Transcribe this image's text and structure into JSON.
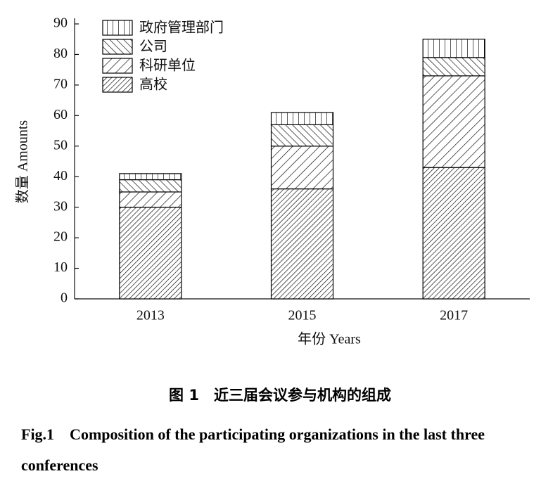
{
  "chart_data": {
    "type": "stacked_bar",
    "xlabel": "年份 Years",
    "ylabel": "数量 Amounts",
    "categories": [
      "2013",
      "2015",
      "2017"
    ],
    "series": [
      {
        "name": "高校",
        "color": "#000000",
        "hatch": "dense-forward",
        "values": [
          30,
          36,
          43
        ]
      },
      {
        "name": "科研单位",
        "color": "#000000",
        "hatch": "forward",
        "values": [
          5,
          14,
          30
        ]
      },
      {
        "name": "公司",
        "color": "#000000",
        "hatch": "backward",
        "values": [
          4,
          7,
          6
        ]
      },
      {
        "name": "政府管理部门",
        "color": "#000000",
        "hatch": "vertical",
        "values": [
          2,
          4,
          6
        ]
      }
    ],
    "ylim": [
      0,
      90
    ],
    "yticks": [
      0,
      10,
      20,
      30,
      40,
      50,
      60,
      70,
      80,
      90
    ],
    "legend": "upper-left"
  },
  "caption": {
    "cn": "图 1　近三届会议参与机构的组成",
    "en": "Fig.1　Composition of the participating organizations in the last three conferences"
  }
}
